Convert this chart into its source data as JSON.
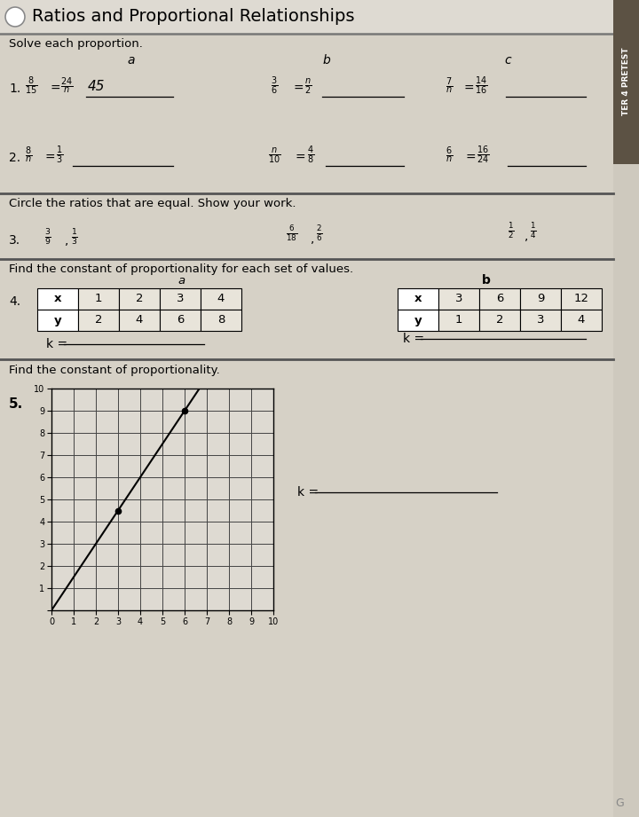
{
  "title": "Ratios and Proportional Relationships",
  "sidebar_text": "TER 4 PRETEST",
  "bg_color": "#cec9be",
  "content_bg": "#d6d1c6",
  "title_bg": "#dedad2",
  "sidebar_color": "#5a5040",
  "section1_label": "Solve each proportion.",
  "section2_label": "Circle the ratios that are equal. Show your work.",
  "section3_label": "Find the constant of proportionality for each set of values.",
  "section4_label": "Find the constant of proportionality.",
  "table_a_x": [
    "x",
    "1",
    "2",
    "3",
    "4"
  ],
  "table_a_y": [
    "y",
    "2",
    "4",
    "6",
    "8"
  ],
  "table_b_x": [
    "x",
    "3",
    "6",
    "9",
    "12"
  ],
  "table_b_y": [
    "y",
    "1",
    "2",
    "3",
    "4"
  ],
  "graph_points": [
    [
      3,
      4.5
    ],
    [
      6,
      9
    ]
  ],
  "graph_slope": 1.5
}
